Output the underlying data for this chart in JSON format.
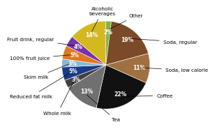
{
  "labels": [
    "Other",
    "Soda, regular",
    "Soda, low calorie",
    "Coffee",
    "Tea",
    "Whole milk",
    "Reduced fat milk",
    "Skim milk",
    "100% fruit juice",
    "Fruit drink, regular",
    "Alcoholic\nbeverages"
  ],
  "values": [
    2,
    19,
    11,
    22,
    13,
    3,
    5,
    3,
    5,
    4,
    14
  ],
  "colors": [
    "#7ab648",
    "#7B4A28",
    "#a07040",
    "#111111",
    "#707070",
    "#404040",
    "#1a3a88",
    "#88b8d8",
    "#e07820",
    "#7733aa",
    "#d4b820"
  ],
  "startangle": 90,
  "pct_fontsize": 5.5,
  "label_fontsize": 5.2
}
